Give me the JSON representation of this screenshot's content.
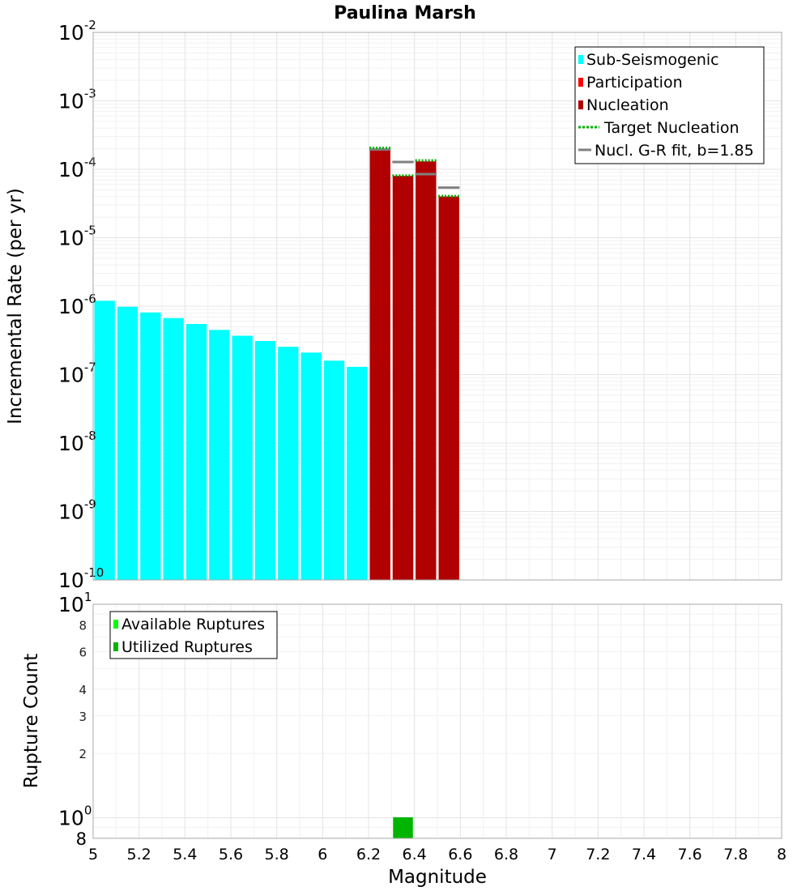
{
  "chart_title": "Paulina Marsh",
  "chart_data": [
    {
      "type": "bar",
      "panel": "top",
      "title": "Paulina Marsh",
      "xlabel": "",
      "ylabel": "Incremental Rate (per yr)",
      "xlim": [
        5,
        8
      ],
      "ylim": [
        1e-10,
        0.01
      ],
      "yscale": "log",
      "grid": true,
      "legend_position": "top-right",
      "legend": [
        {
          "label": "Sub-Seismogenic",
          "color": "#00ffff",
          "kind": "box"
        },
        {
          "label": "Participation",
          "color": "#ff0000",
          "kind": "box"
        },
        {
          "label": "Nucleation",
          "color": "#b00000",
          "kind": "box"
        },
        {
          "label": "Target Nucleation",
          "color": "#00b000",
          "kind": "dotted-line"
        },
        {
          "label": "Nucl. G-R fit, b=1.85",
          "color": "#808080",
          "kind": "line"
        }
      ],
      "y_ticks": [
        {
          "base": "10",
          "exp": "-2"
        },
        {
          "base": "10",
          "exp": "-3"
        },
        {
          "base": "10",
          "exp": "-4"
        },
        {
          "base": "10",
          "exp": "-5"
        },
        {
          "base": "10",
          "exp": "-6"
        },
        {
          "base": "10",
          "exp": "-7"
        },
        {
          "base": "10",
          "exp": "-8"
        },
        {
          "base": "10",
          "exp": "-9"
        },
        {
          "base": "10",
          "exp": "-10"
        }
      ],
      "series": [
        {
          "name": "Sub-Seismogenic",
          "color": "#00ffff",
          "x": [
            5.05,
            5.15,
            5.25,
            5.35,
            5.45,
            5.55,
            5.65,
            5.75,
            5.85,
            5.95,
            6.05,
            6.15
          ],
          "values": [
            1.2e-06,
            9.8e-07,
            8.1e-07,
            6.7e-07,
            5.5e-07,
            4.5e-07,
            3.7e-07,
            3.1e-07,
            2.55e-07,
            2.1e-07,
            1.6e-07,
            1.3e-07
          ]
        },
        {
          "name": "Participation",
          "color": "#ff0000",
          "x": [
            6.25,
            6.35,
            6.45,
            6.55
          ],
          "values": [
            0.0002,
            8e-05,
            0.00013,
            4e-05
          ]
        },
        {
          "name": "Nucleation",
          "color": "#b00000",
          "x": [
            6.25,
            6.35,
            6.45,
            6.55
          ],
          "values": [
            0.0002,
            8e-05,
            0.00013,
            4e-05
          ]
        },
        {
          "name": "Target Nucleation",
          "color": "#00b000",
          "x": [
            6.25,
            6.35,
            6.45,
            6.55
          ],
          "values": [
            0.000205,
            8.1e-05,
            0.000135,
            4.05e-05
          ]
        },
        {
          "name": "Nucl. G-R fit, b=1.85",
          "color": "#808080",
          "x": [
            6.25,
            6.35,
            6.45,
            6.55
          ],
          "values": [
            0.000195,
            0.000128,
            8.5e-05,
            5.4e-05
          ]
        }
      ]
    },
    {
      "type": "bar",
      "panel": "bottom",
      "xlabel": "Magnitude",
      "ylabel": "Rupture Count",
      "xlim": [
        5,
        8
      ],
      "ylim": [
        0.8,
        10
      ],
      "yscale": "log",
      "grid": true,
      "legend_position": "top-left",
      "legend": [
        {
          "label": "Available Ruptures",
          "color": "#00ff00",
          "kind": "box"
        },
        {
          "label": "Utilized Ruptures",
          "color": "#00b400",
          "kind": "box"
        }
      ],
      "y_ticks_power": [
        {
          "base": "10",
          "exp": "1"
        },
        {
          "base": "10",
          "exp": "0"
        }
      ],
      "y_ticks_minor": [
        {
          "value": 8,
          "label": "8"
        },
        {
          "value": 6,
          "label": "6"
        },
        {
          "value": 4,
          "label": "4"
        },
        {
          "value": 3,
          "label": "3"
        },
        {
          "value": 2,
          "label": "2"
        }
      ],
      "y_bottom_label": "8",
      "series": [
        {
          "name": "Available Ruptures",
          "color": "#00ff00",
          "x": [
            6.35
          ],
          "values": [
            1
          ]
        },
        {
          "name": "Utilized Ruptures",
          "color": "#00b400",
          "x": [
            6.35
          ],
          "values": [
            1
          ]
        }
      ],
      "x_ticks": [
        "5",
        "5.2",
        "5.4",
        "5.6",
        "5.8",
        "6",
        "6.2",
        "6.4",
        "6.6",
        "6.8",
        "7",
        "7.2",
        "7.4",
        "7.6",
        "7.8",
        "8"
      ]
    }
  ]
}
